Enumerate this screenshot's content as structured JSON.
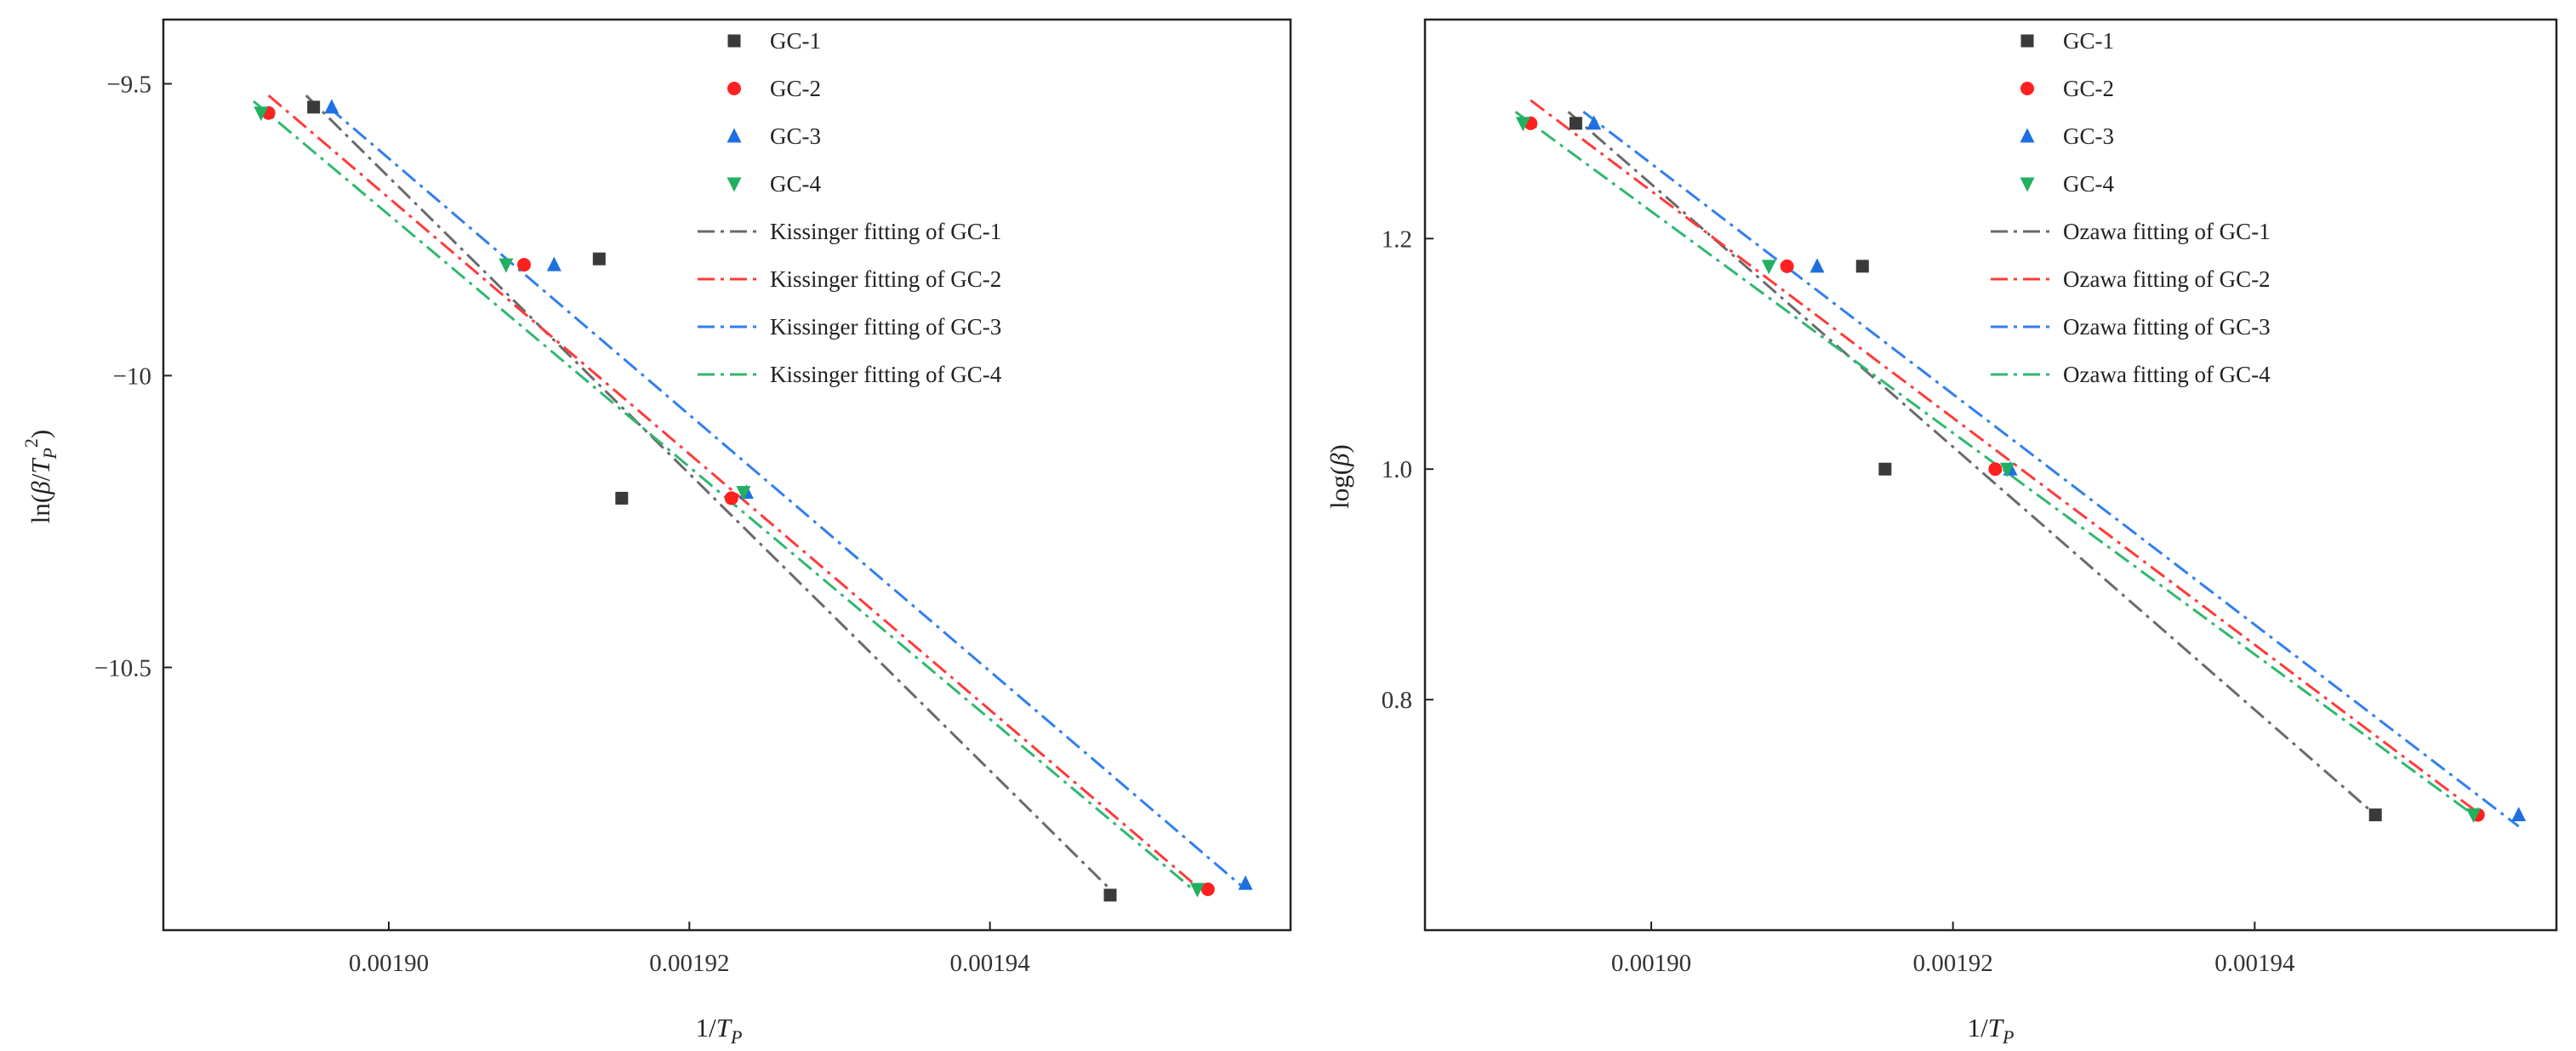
{
  "chart_data": [
    {
      "type": "scatter",
      "panel": "left",
      "xlabel": "1/T_P",
      "ylabel": "ln(β/T_P^2)",
      "xlim": [
        0.001885,
        0.00196
      ],
      "ylim": [
        -10.95,
        -9.39
      ],
      "xticks": [
        0.0019,
        0.00192,
        0.00194
      ],
      "xtick_labels": [
        "0.00190",
        "0.00192",
        "0.00194"
      ],
      "yticks": [
        -9.5,
        -10,
        -10.5
      ],
      "ytick_labels": [
        "−9.5",
        "−10",
        "−10.5"
      ],
      "series": [
        {
          "name": "GC-1",
          "marker": "square",
          "color": "#3a3a3a",
          "x": [
            0.001895,
            0.001914,
            0.0019155,
            0.001948
          ],
          "y": [
            -9.54,
            -9.8,
            -10.21,
            -10.89
          ]
        },
        {
          "name": "GC-2",
          "marker": "circle",
          "color": "#ff2020",
          "x": [
            0.001892,
            0.001909,
            0.0019228,
            0.0019545
          ],
          "y": [
            -9.55,
            -9.81,
            -10.21,
            -10.88
          ]
        },
        {
          "name": "GC-3",
          "marker": "triangle-up",
          "color": "#1f6fe0",
          "x": [
            0.0018962,
            0.001911,
            0.0019238,
            0.001957
          ],
          "y": [
            -9.54,
            -9.81,
            -10.2,
            -10.87
          ]
        },
        {
          "name": "GC-4",
          "marker": "triangle-down",
          "color": "#20b060",
          "x": [
            0.0018915,
            0.0019078,
            0.0019236,
            0.0019538
          ],
          "y": [
            -9.55,
            -9.81,
            -10.2,
            -10.88
          ]
        }
      ],
      "fits": [
        {
          "name": "Kissinger fitting of GC-1",
          "color": "#6a6a6a",
          "x": [
            0.0018945,
            0.001948
          ],
          "y": [
            -9.52,
            -10.88
          ]
        },
        {
          "name": "Kissinger fitting of GC-2",
          "color": "#ff3a3a",
          "x": [
            0.001892,
            0.001954
          ],
          "y": [
            -9.52,
            -10.88
          ]
        },
        {
          "name": "Kissinger fitting of GC-3",
          "color": "#2f7ff0",
          "x": [
            0.001896,
            0.001957
          ],
          "y": [
            -9.54,
            -10.88
          ]
        },
        {
          "name": "Kissinger fitting of GC-4",
          "color": "#30b870",
          "x": [
            0.001891,
            0.0019535
          ],
          "y": [
            -9.53,
            -10.88
          ]
        }
      ]
    },
    {
      "type": "scatter",
      "panel": "right",
      "xlabel": "1/T_P",
      "ylabel": "log(β)",
      "xlim": [
        0.001885,
        0.00196
      ],
      "ylim": [
        0.6,
        1.39
      ],
      "xticks": [
        0.0019,
        0.00192,
        0.00194
      ],
      "xtick_labels": [
        "0.00190",
        "0.00192",
        "0.00194"
      ],
      "yticks": [
        0.8,
        1.0,
        1.2
      ],
      "ytick_labels": [
        "0.8",
        "1.0",
        "1.2"
      ],
      "series": [
        {
          "name": "GC-1",
          "marker": "square",
          "color": "#3a3a3a",
          "x": [
            0.001895,
            0.001914,
            0.0019155,
            0.001948
          ],
          "y": [
            1.3,
            1.176,
            1.0,
            0.7
          ]
        },
        {
          "name": "GC-2",
          "marker": "circle",
          "color": "#ff2020",
          "x": [
            0.001892,
            0.001909,
            0.0019228,
            0.0019548
          ],
          "y": [
            1.3,
            1.176,
            1.0,
            0.7
          ]
        },
        {
          "name": "GC-3",
          "marker": "triangle-up",
          "color": "#1f6fe0",
          "x": [
            0.0018962,
            0.001911,
            0.0019238,
            0.0019575
          ],
          "y": [
            1.3,
            1.176,
            1.0,
            0.7
          ]
        },
        {
          "name": "GC-4",
          "marker": "triangle-down",
          "color": "#20b060",
          "x": [
            0.0018915,
            0.0019078,
            0.0019236,
            0.0019545
          ],
          "y": [
            1.3,
            1.176,
            1.0,
            0.7
          ]
        }
      ],
      "fits": [
        {
          "name": "Ozawa fitting of GC-1",
          "color": "#6a6a6a",
          "x": [
            0.0018945,
            0.001948
          ],
          "y": [
            1.31,
            0.7
          ]
        },
        {
          "name": "Ozawa fitting of GC-2",
          "color": "#ff3a3a",
          "x": [
            0.001892,
            0.001955
          ],
          "y": [
            1.32,
            0.7
          ]
        },
        {
          "name": "Ozawa fitting of GC-3",
          "color": "#2f7ff0",
          "x": [
            0.0018955,
            0.0019575
          ],
          "y": [
            1.31,
            0.69
          ]
        },
        {
          "name": "Ozawa fitting of GC-4",
          "color": "#30b870",
          "x": [
            0.001891,
            0.0019545
          ],
          "y": [
            1.31,
            0.7
          ]
        }
      ]
    }
  ]
}
